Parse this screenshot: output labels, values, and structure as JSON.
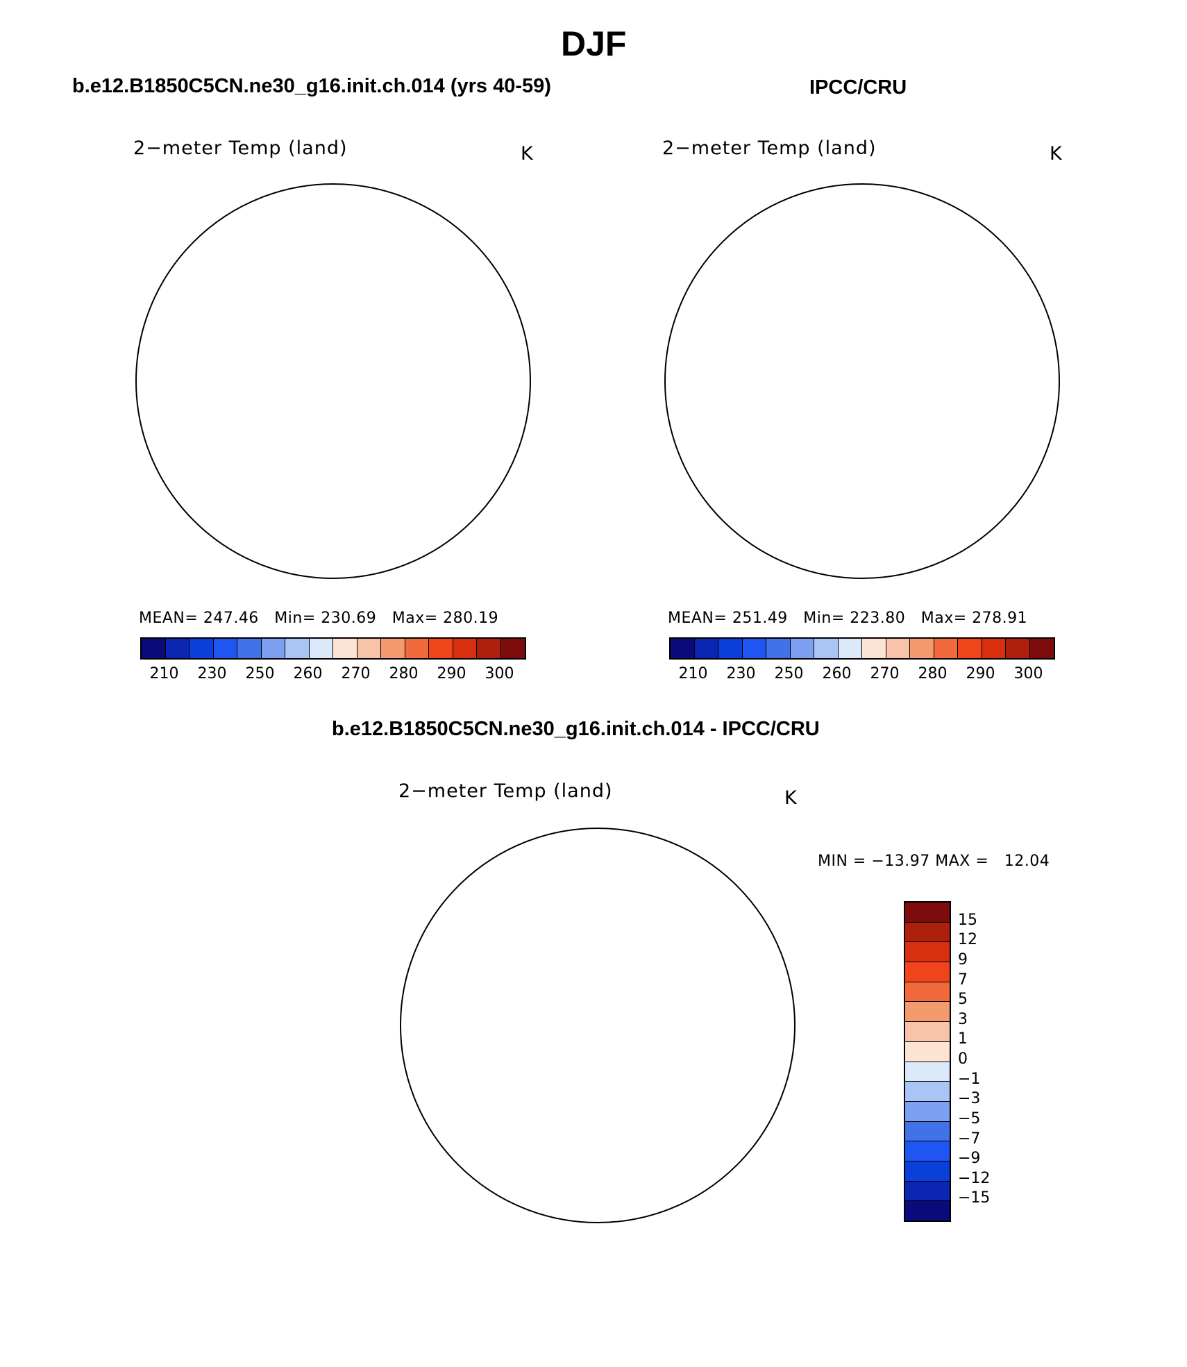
{
  "title": "DJF",
  "panel_a": {
    "case_title": "b.e12.B1850C5CN.ne30_g16.init.ch.014 (yrs 40-59)",
    "var_label": "2−meter Temp (land)",
    "units": "K",
    "stats": {
      "mean_label": "MEAN=",
      "mean": "247.46",
      "min_label": "Min=",
      "min": "230.69",
      "max_label": "Max=",
      "max": "280.19"
    }
  },
  "panel_b": {
    "case_title": "IPCC/CRU",
    "var_label": "2−meter Temp (land)",
    "units": "K",
    "stats": {
      "mean_label": "MEAN=",
      "mean": "251.49",
      "min_label": "Min=",
      "min": "223.80",
      "max_label": "Max=",
      "max": "278.91"
    }
  },
  "panel_c": {
    "case_title": "b.e12.B1850C5CN.ne30_g16.init.ch.014 - IPCC/CRU",
    "var_label": "2−meter Temp (land)",
    "units": "K",
    "minmax": "MIN = −13.97 MAX =   12.04"
  },
  "abs_colorbar": {
    "colors": [
      "#0a0a7a",
      "#0b26b3",
      "#0a3fd9",
      "#1f55f0",
      "#4272e8",
      "#7c9ff0",
      "#a9c4f5",
      "#dbe9fb",
      "#fde3d4",
      "#f9c3a9",
      "#f5996f",
      "#f26a3c",
      "#f0441b",
      "#d82f0e",
      "#ae1f0d",
      "#7d0c0c"
    ],
    "ticks": [
      "210",
      "230",
      "250",
      "260",
      "270",
      "280",
      "290",
      "300"
    ]
  },
  "diff_colorbar": {
    "colors": [
      "#7d0c0c",
      "#ae1f0d",
      "#d82f0e",
      "#f0441b",
      "#f26a3c",
      "#f5996f",
      "#f9c3a9",
      "#fde3d4",
      "#dbe9fb",
      "#a9c4f5",
      "#7c9ff0",
      "#4272e8",
      "#1f55f0",
      "#0a3fd9",
      "#0b26b3",
      "#0a0a7a"
    ],
    "ticks": [
      "15",
      "12",
      "9",
      "7",
      "5",
      "3",
      "1",
      "0",
      "−1",
      "−3",
      "−5",
      "−7",
      "−9",
      "−12",
      "−15"
    ]
  },
  "map_colors": {
    "land_cold": "#3f6ee6",
    "land_mid": "#6e93ee",
    "land_light": "#a9c4f5",
    "land_pale": "#dbe9fb",
    "land_warm": "#f9c3a9",
    "land_warmer": "#f2896a",
    "ice": "#ffffff",
    "deep_blue": "#1f45d9",
    "hot_red": "#e8511f"
  }
}
